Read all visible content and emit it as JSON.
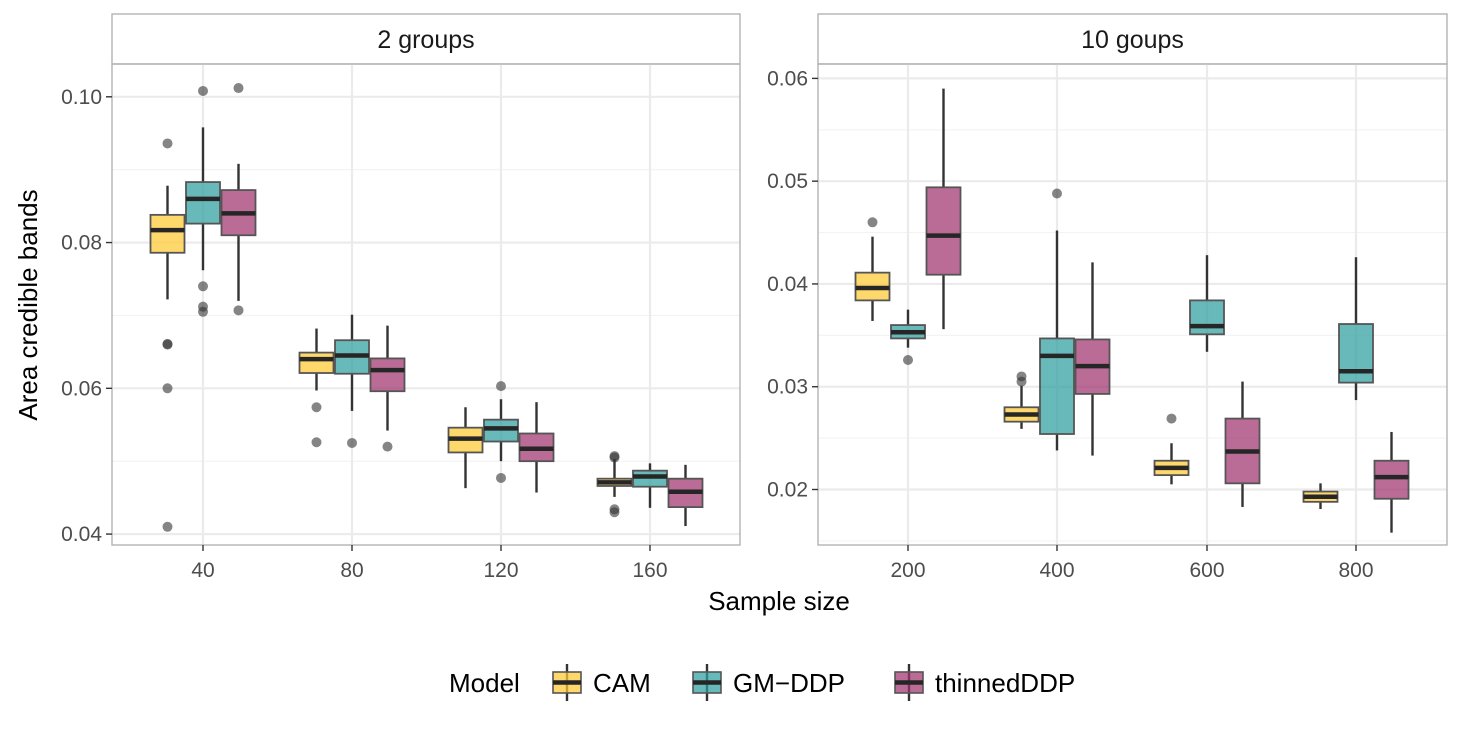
{
  "chart_data": {
    "type": "boxplot",
    "title": "",
    "xlabel": "Sample size",
    "ylabel": "Area credible bands",
    "grid": true,
    "legend_position": "bottom",
    "legend": {
      "title": "Model",
      "entries": [
        {
          "name": "CAM",
          "color": "#FFC933"
        },
        {
          "name": "GM−DDP",
          "color": "#2E9E9E"
        },
        {
          "name": "thinnedDDP",
          "color": "#A0326E"
        }
      ]
    },
    "facets": [
      {
        "label": "2 groups",
        "x_ticks": [
          "40",
          "80",
          "120",
          "160"
        ],
        "y_ticks": [
          "0.04",
          "0.06",
          "0.08",
          "0.10"
        ],
        "ylim": [
          0.0385,
          0.1045
        ],
        "groups": [
          {
            "x": "40",
            "boxes": [
              {
                "model": "CAM",
                "q1": 0.0786,
                "median": 0.0817,
                "q3": 0.0838,
                "lower": 0.0722,
                "upper": 0.0878,
                "outliers": [
                  0.0936,
                  0.0661,
                  0.066,
                  0.06,
                  0.041
                ]
              },
              {
                "model": "GM−DDP",
                "q1": 0.0826,
                "median": 0.086,
                "q3": 0.0883,
                "lower": 0.0762,
                "upper": 0.0958,
                "outliers": [
                  0.1008,
                  0.074,
                  0.0712,
                  0.0705
                ]
              },
              {
                "model": "thinnedDDP",
                "q1": 0.081,
                "median": 0.084,
                "q3": 0.0872,
                "lower": 0.072,
                "upper": 0.0908,
                "outliers": [
                  0.1012,
                  0.0707
                ]
              }
            ]
          },
          {
            "x": "80",
            "boxes": [
              {
                "model": "CAM",
                "q1": 0.0621,
                "median": 0.064,
                "q3": 0.0649,
                "lower": 0.0597,
                "upper": 0.0682,
                "outliers": [
                  0.0574,
                  0.0526
                ]
              },
              {
                "model": "GM−DDP",
                "q1": 0.062,
                "median": 0.0645,
                "q3": 0.0666,
                "lower": 0.0569,
                "upper": 0.0701,
                "outliers": [
                  0.0525
                ]
              },
              {
                "model": "thinnedDDP",
                "q1": 0.0596,
                "median": 0.0625,
                "q3": 0.0641,
                "lower": 0.0542,
                "upper": 0.0686,
                "outliers": [
                  0.052
                ]
              }
            ]
          },
          {
            "x": "120",
            "boxes": [
              {
                "model": "CAM",
                "q1": 0.0512,
                "median": 0.0531,
                "q3": 0.0546,
                "lower": 0.0463,
                "upper": 0.0574,
                "outliers": []
              },
              {
                "model": "GM−DDP",
                "q1": 0.0527,
                "median": 0.0545,
                "q3": 0.0557,
                "lower": 0.05,
                "upper": 0.0585,
                "outliers": [
                  0.0603,
                  0.0477
                ]
              },
              {
                "model": "thinnedDDP",
                "q1": 0.05,
                "median": 0.0517,
                "q3": 0.0538,
                "lower": 0.0457,
                "upper": 0.0581,
                "outliers": []
              }
            ]
          },
          {
            "x": "160",
            "boxes": [
              {
                "model": "CAM",
                "q1": 0.0466,
                "median": 0.0471,
                "q3": 0.0476,
                "lower": 0.0451,
                "upper": 0.0503,
                "outliers": [
                  0.0507,
                  0.0505,
                  0.0434,
                  0.043
                ]
              },
              {
                "model": "GM−DDP",
                "q1": 0.0465,
                "median": 0.0479,
                "q3": 0.0487,
                "lower": 0.0436,
                "upper": 0.0497,
                "outliers": []
              },
              {
                "model": "thinnedDDP",
                "q1": 0.0437,
                "median": 0.0458,
                "q3": 0.0476,
                "lower": 0.0411,
                "upper": 0.0495,
                "outliers": []
              }
            ]
          }
        ]
      },
      {
        "label": "10 goups",
        "x_ticks": [
          "200",
          "400",
          "600",
          "800"
        ],
        "y_ticks": [
          "0.02",
          "0.03",
          "0.04",
          "0.05",
          "0.06"
        ],
        "ylim": [
          0.0146,
          0.0614
        ],
        "groups": [
          {
            "x": "200",
            "boxes": [
              {
                "model": "CAM",
                "q1": 0.0384,
                "median": 0.0396,
                "q3": 0.0411,
                "lower": 0.0364,
                "upper": 0.0446,
                "outliers": [
                  0.046
                ]
              },
              {
                "model": "GM−DDP",
                "q1": 0.0347,
                "median": 0.0353,
                "q3": 0.036,
                "lower": 0.0338,
                "upper": 0.0375,
                "outliers": [
                  0.0326
                ]
              },
              {
                "model": "thinnedDDP",
                "q1": 0.0409,
                "median": 0.0447,
                "q3": 0.0494,
                "lower": 0.0356,
                "upper": 0.059,
                "outliers": []
              }
            ]
          },
          {
            "x": "400",
            "boxes": [
              {
                "model": "CAM",
                "q1": 0.0266,
                "median": 0.0273,
                "q3": 0.028,
                "lower": 0.0259,
                "upper": 0.0301,
                "outliers": [
                  0.031,
                  0.0305
                ]
              },
              {
                "model": "GM−DDP",
                "q1": 0.0254,
                "median": 0.033,
                "q3": 0.0347,
                "lower": 0.0238,
                "upper": 0.0452,
                "outliers": [
                  0.0488
                ]
              },
              {
                "model": "thinnedDDP",
                "q1": 0.0293,
                "median": 0.032,
                "q3": 0.0346,
                "lower": 0.0233,
                "upper": 0.0421,
                "outliers": []
              }
            ]
          },
          {
            "x": "600",
            "boxes": [
              {
                "model": "CAM",
                "q1": 0.0214,
                "median": 0.0221,
                "q3": 0.0228,
                "lower": 0.0205,
                "upper": 0.0245,
                "outliers": [
                  0.0269
                ]
              },
              {
                "model": "GM−DDP",
                "q1": 0.0351,
                "median": 0.0359,
                "q3": 0.0384,
                "lower": 0.0334,
                "upper": 0.0428,
                "outliers": []
              },
              {
                "model": "thinnedDDP",
                "q1": 0.0206,
                "median": 0.0237,
                "q3": 0.0269,
                "lower": 0.0183,
                "upper": 0.0305,
                "outliers": []
              }
            ]
          },
          {
            "x": "800",
            "boxes": [
              {
                "model": "CAM",
                "q1": 0.0188,
                "median": 0.0193,
                "q3": 0.0198,
                "lower": 0.0181,
                "upper": 0.0206,
                "outliers": []
              },
              {
                "model": "GM−DDP",
                "q1": 0.0304,
                "median": 0.0315,
                "q3": 0.0361,
                "lower": 0.0287,
                "upper": 0.0426,
                "outliers": []
              },
              {
                "model": "thinnedDDP",
                "q1": 0.0191,
                "median": 0.0212,
                "q3": 0.0228,
                "lower": 0.0158,
                "upper": 0.0256,
                "outliers": []
              }
            ]
          }
        ]
      }
    ]
  }
}
